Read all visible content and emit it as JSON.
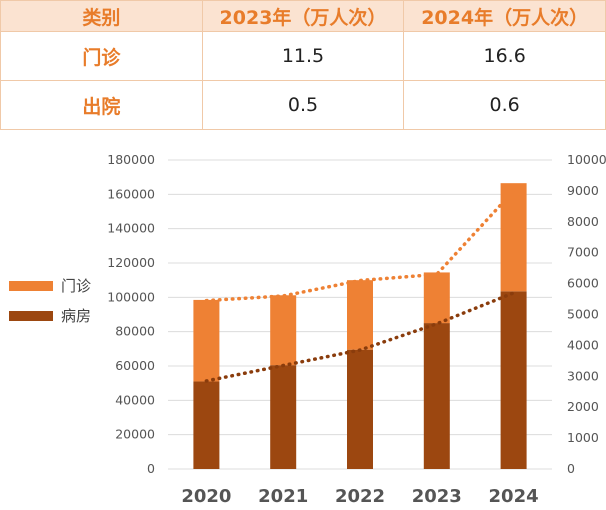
{
  "table": {
    "headers": [
      "类别",
      "2023年（万人次）",
      "2024年（万人次）"
    ],
    "rows": [
      {
        "label": "门诊",
        "values": [
          "11.5",
          "16.6"
        ]
      },
      {
        "label": "出院",
        "values": [
          "0.5",
          "0.6"
        ]
      }
    ]
  },
  "colors": {
    "outpatient": "#ee8134",
    "inpatient": "#9c4710",
    "header_bg": "#fbe3d1",
    "accent_text": "#e87c2a"
  },
  "chart_data": {
    "type": "bar",
    "stacked": true,
    "categories": [
      "2020",
      "2021",
      "2022",
      "2023",
      "2024"
    ],
    "series": [
      {
        "name": "病房",
        "values": [
          51000,
          60500,
          69500,
          85000,
          103500
        ],
        "color": "#9c4710"
      },
      {
        "name": "门诊",
        "values": [
          47500,
          40700,
          40500,
          29500,
          63000
        ],
        "color": "#ee8134"
      }
    ],
    "left_axis": {
      "ylim": [
        0,
        180000
      ],
      "ticks": [
        "0",
        "20000",
        "40000",
        "60000",
        "80000",
        "100000",
        "120000",
        "140000",
        "160000",
        "180000"
      ]
    },
    "right_axis": {
      "ylim": [
        0,
        10000
      ],
      "ticks": [
        "0",
        "1000",
        "2000",
        "3000",
        "4000",
        "5000",
        "6000",
        "7000",
        "8000",
        "9000",
        "10000"
      ]
    },
    "trendlines": [
      {
        "series": "门诊",
        "axis": "right",
        "values": [
          5450,
          5600,
          6100,
          6300,
          9000
        ],
        "style": "dotted"
      },
      {
        "series": "病房",
        "axis": "right",
        "values": [
          2850,
          3350,
          3850,
          4700,
          5700
        ],
        "style": "dotted"
      }
    ],
    "legend": {
      "placement": "left",
      "entries": [
        "门诊",
        "病房"
      ]
    },
    "grid": true
  }
}
